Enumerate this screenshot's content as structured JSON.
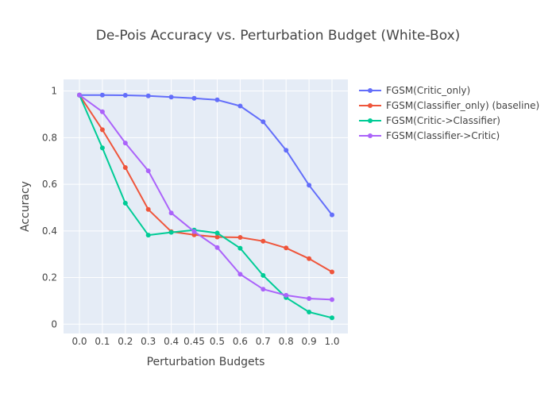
{
  "chart_data": {
    "type": "line",
    "title": "De-Pois Accuracy vs. Perturbation Budget (White-Box)",
    "xlabel": "Perturbation Budgets",
    "ylabel": "Accuracy",
    "categories": [
      "0.0",
      "0.1",
      "0.2",
      "0.3",
      "0.4",
      "0.45",
      "0.5",
      "0.6",
      "0.7",
      "0.8",
      "0.9",
      "1.0"
    ],
    "y_ticks": [
      "0",
      "0.2",
      "0.4",
      "0.6",
      "0.8",
      "1"
    ],
    "y_tick_values": [
      0,
      0.2,
      0.4,
      0.6,
      0.8,
      1
    ],
    "ylim": [
      -0.04,
      1.05
    ],
    "grid": true,
    "legend_position": "top-right",
    "series": [
      {
        "name": "FGSM(Critic_only)",
        "color": "#636efa",
        "values": [
          0.983,
          0.983,
          0.982,
          0.979,
          0.974,
          0.969,
          0.962,
          0.936,
          0.868,
          0.746,
          0.596,
          0.469
        ]
      },
      {
        "name": "FGSM(Classifier_only) (baseline)",
        "color": "#ef553b",
        "values": [
          0.983,
          0.834,
          0.672,
          0.492,
          0.397,
          0.383,
          0.374,
          0.372,
          0.356,
          0.327,
          0.281,
          0.224
        ]
      },
      {
        "name": "FGSM(Critic->Classifier)",
        "color": "#00cc96",
        "values": [
          0.983,
          0.756,
          0.519,
          0.382,
          0.394,
          0.404,
          0.391,
          0.326,
          0.209,
          0.114,
          0.052,
          0.027
        ]
      },
      {
        "name": "FGSM(Classifier->Critic)",
        "color": "#ab63fa",
        "values": [
          0.983,
          0.911,
          0.777,
          0.658,
          0.477,
          0.397,
          0.329,
          0.214,
          0.15,
          0.124,
          0.11,
          0.105
        ]
      }
    ]
  },
  "colors": {
    "plot_background": "#e5ecf6",
    "grid": "#ffffff",
    "text": "#444444"
  }
}
